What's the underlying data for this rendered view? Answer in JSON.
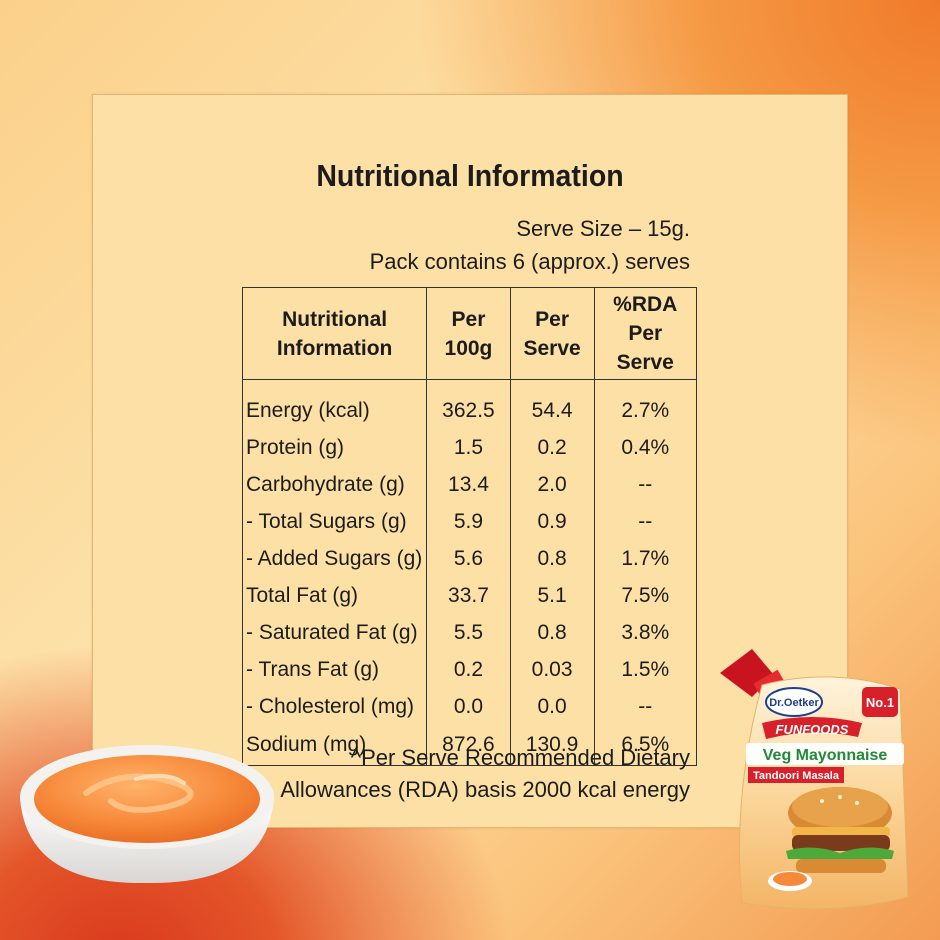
{
  "title": "Nutritional Information",
  "serve_size": "Serve Size – 15g.",
  "pack_contains": "Pack contains 6 (approx.) serves",
  "table": {
    "headers": [
      [
        "Nutritional",
        "Information"
      ],
      [
        "Per",
        "100g"
      ],
      [
        "Per",
        "Serve"
      ],
      [
        "%RDA",
        "Per Serve"
      ]
    ],
    "rows": [
      [
        "Energy (kcal)",
        "362.5",
        "54.4",
        "2.7%"
      ],
      [
        "Protein (g)",
        "1.5",
        "0.2",
        "0.4%"
      ],
      [
        "Carbohydrate (g)",
        "13.4",
        "2.0",
        "--"
      ],
      [
        "- Total Sugars (g)",
        "5.9",
        "0.9",
        "--"
      ],
      [
        "- Added Sugars (g)",
        "5.6",
        "0.8",
        "1.7%"
      ],
      [
        "Total Fat (g)",
        "33.7",
        "5.1",
        "7.5%"
      ],
      [
        "- Saturated Fat (g)",
        "5.5",
        "0.8",
        "3.8%"
      ],
      [
        "- Trans Fat (g)",
        "0.2",
        "0.03",
        "1.5%"
      ],
      [
        "- Cholesterol (mg)",
        "0.0",
        "0.0",
        "--"
      ],
      [
        "Sodium (mg)",
        "872.6",
        "130.9",
        "6.5%"
      ]
    ]
  },
  "footnote_line1": "^Per Serve Recommended Dietary",
  "footnote_line2": "Allowances (RDA) basis 2000 kcal energy",
  "product": {
    "brand": "Dr.Oetker",
    "sub_brand": "FUNFOODS",
    "badge": "No.1",
    "name": "Veg Mayonnaise",
    "variant": "Tandoori Masala"
  },
  "colors": {
    "panel": "#fde0a5",
    "text": "#1c1c1c",
    "sauce": "#f58a3a",
    "pouch_red": "#d8202a",
    "pouch_green": "#1f8a3a"
  }
}
